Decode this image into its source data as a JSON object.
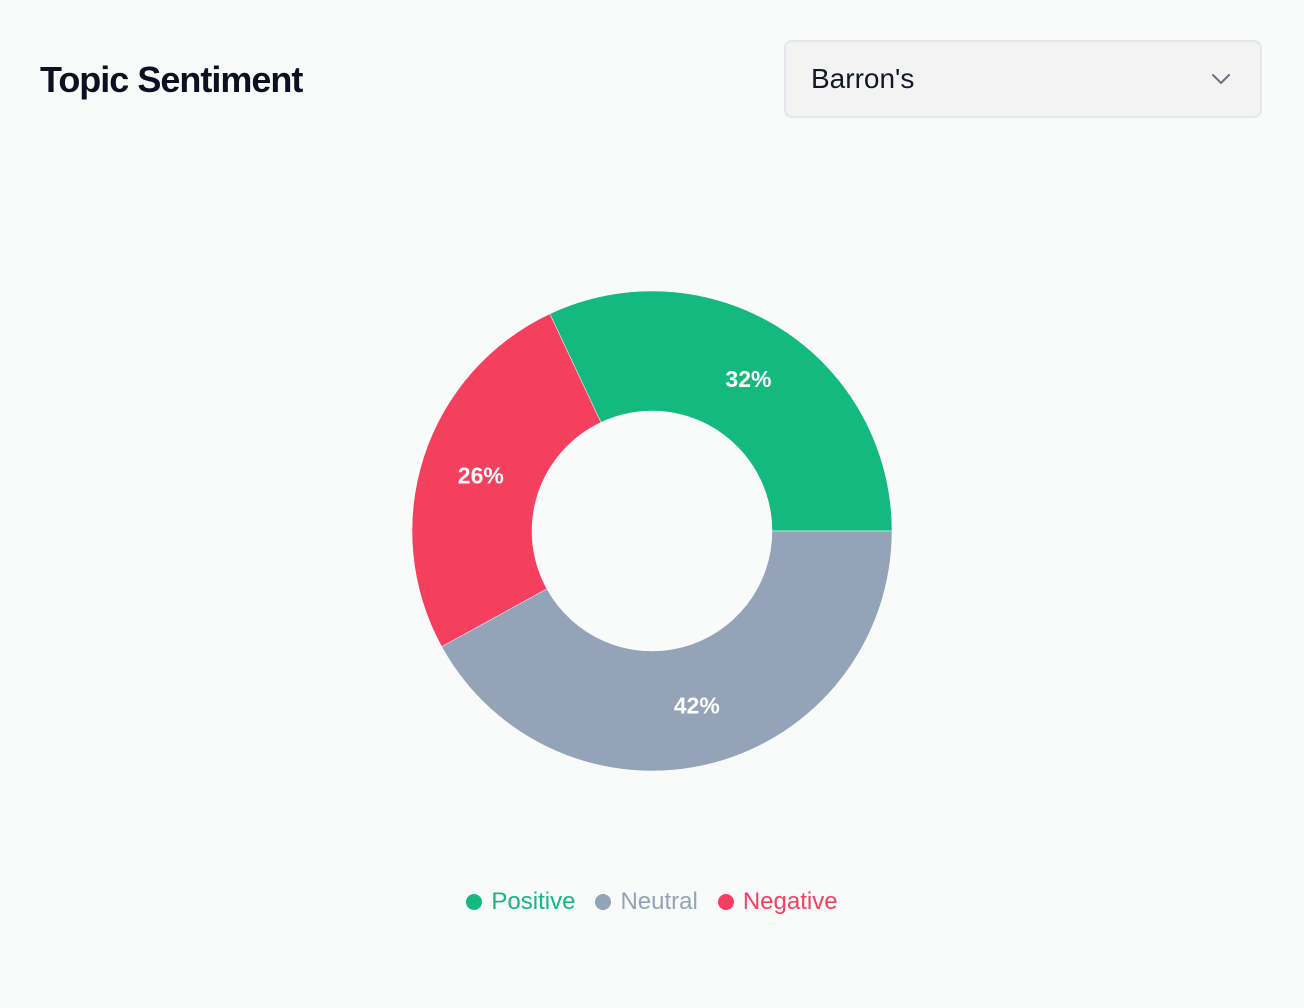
{
  "header": {
    "title": "Topic Sentiment"
  },
  "source_select": {
    "value": "Barron's",
    "icon": "chevron-down-icon"
  },
  "colors": {
    "positive": "#13b97e",
    "neutral": "#94a3b8",
    "negative": "#f43f5e",
    "background": "#f9fafa"
  },
  "chart_data": {
    "type": "pie",
    "donut": true,
    "labels": [
      "Positive",
      "Neutral",
      "Negative"
    ],
    "values": [
      32,
      42,
      26
    ],
    "value_labels": [
      "32%",
      "42%",
      "26%"
    ],
    "colors": [
      "#13b97e",
      "#94a3b8",
      "#f43f5e"
    ],
    "legend_position": "bottom"
  }
}
